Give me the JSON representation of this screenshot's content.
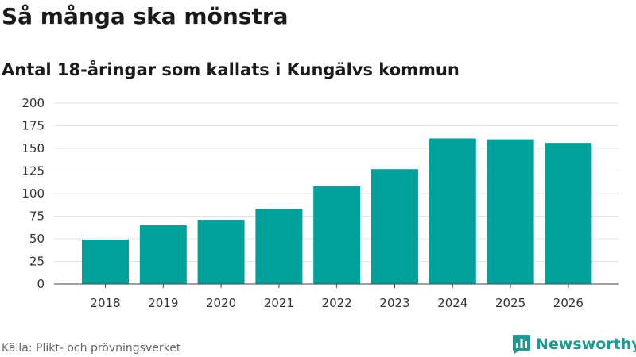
{
  "header": {
    "title": "Så många ska mönstra",
    "subtitle": "Antal 18-åringar som kallats i Kungälvs kommun"
  },
  "chart_data": {
    "type": "bar",
    "categories": [
      "2018",
      "2019",
      "2020",
      "2021",
      "2022",
      "2023",
      "2024",
      "2025",
      "2026"
    ],
    "values": [
      49,
      65,
      71,
      83,
      108,
      127,
      161,
      160,
      156
    ],
    "ylim": [
      0,
      200
    ],
    "yticks": [
      0,
      25,
      50,
      75,
      100,
      125,
      150,
      175,
      200
    ],
    "grid": true,
    "bar_color": "#00a19a"
  },
  "footer": {
    "source": "Källa: Plikt- och prövningsverket",
    "brand": "Newsworthy",
    "brand_color": "#1f9b93",
    "brand_icon": "bar-chart-speech-bubble-icon"
  }
}
